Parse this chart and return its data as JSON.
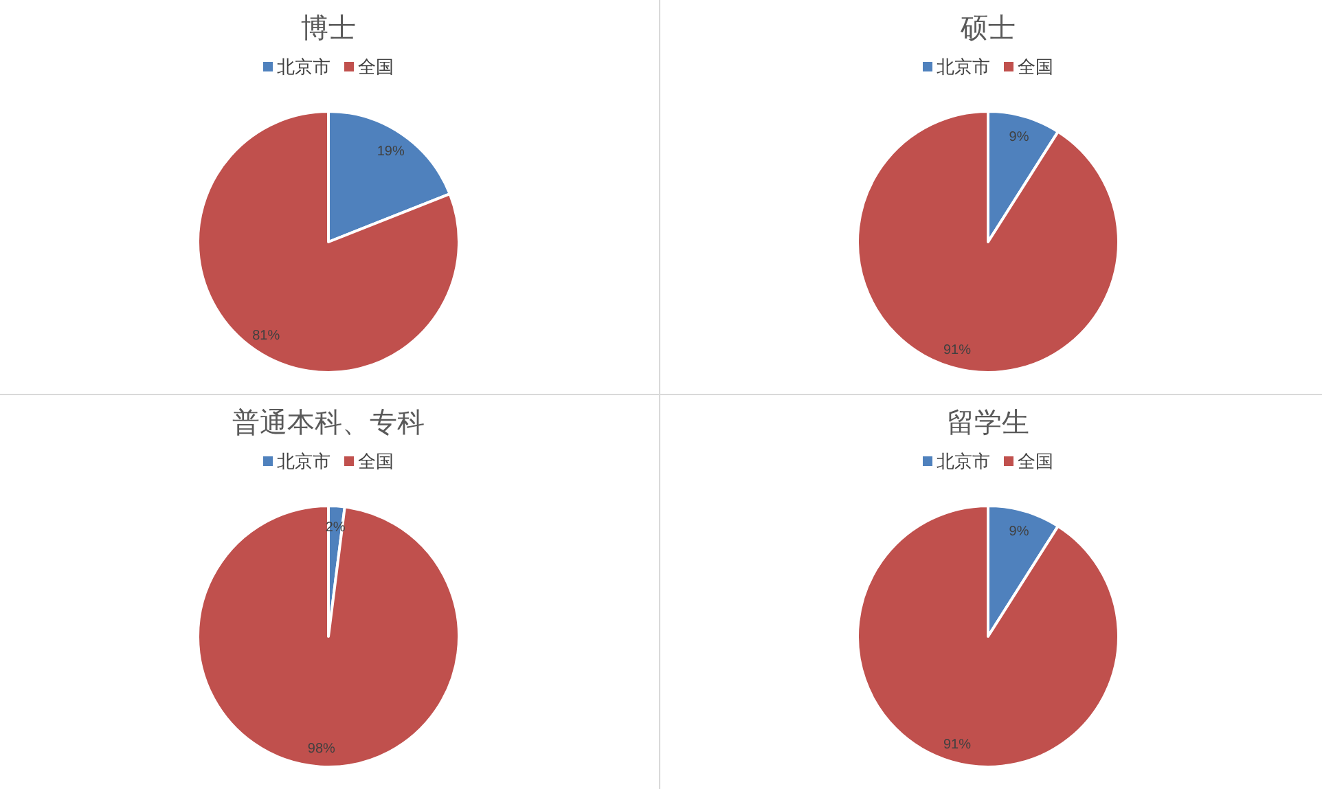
{
  "chart_data": [
    {
      "type": "pie",
      "title": "博士",
      "categories": [
        "北京市",
        "全国"
      ],
      "values": [
        19,
        81
      ],
      "colors": [
        "#4f81bd",
        "#c0504d"
      ],
      "value_labels": [
        "19%",
        "81%"
      ],
      "legend": "top"
    },
    {
      "type": "pie",
      "title": "硕士",
      "categories": [
        "北京市",
        "全国"
      ],
      "values": [
        9,
        91
      ],
      "colors": [
        "#4f81bd",
        "#c0504d"
      ],
      "value_labels": [
        "9%",
        "91%"
      ],
      "legend": "top"
    },
    {
      "type": "pie",
      "title": "普通本科、专科",
      "categories": [
        "北京市",
        "全国"
      ],
      "values": [
        2,
        98
      ],
      "colors": [
        "#4f81bd",
        "#c0504d"
      ],
      "value_labels": [
        "2%",
        "98%"
      ],
      "legend": "top"
    },
    {
      "type": "pie",
      "title": "留学生",
      "categories": [
        "北京市",
        "全国"
      ],
      "values": [
        9,
        91
      ],
      "colors": [
        "#4f81bd",
        "#c0504d"
      ],
      "value_labels": [
        "9%",
        "91%"
      ],
      "legend": "top"
    }
  ]
}
